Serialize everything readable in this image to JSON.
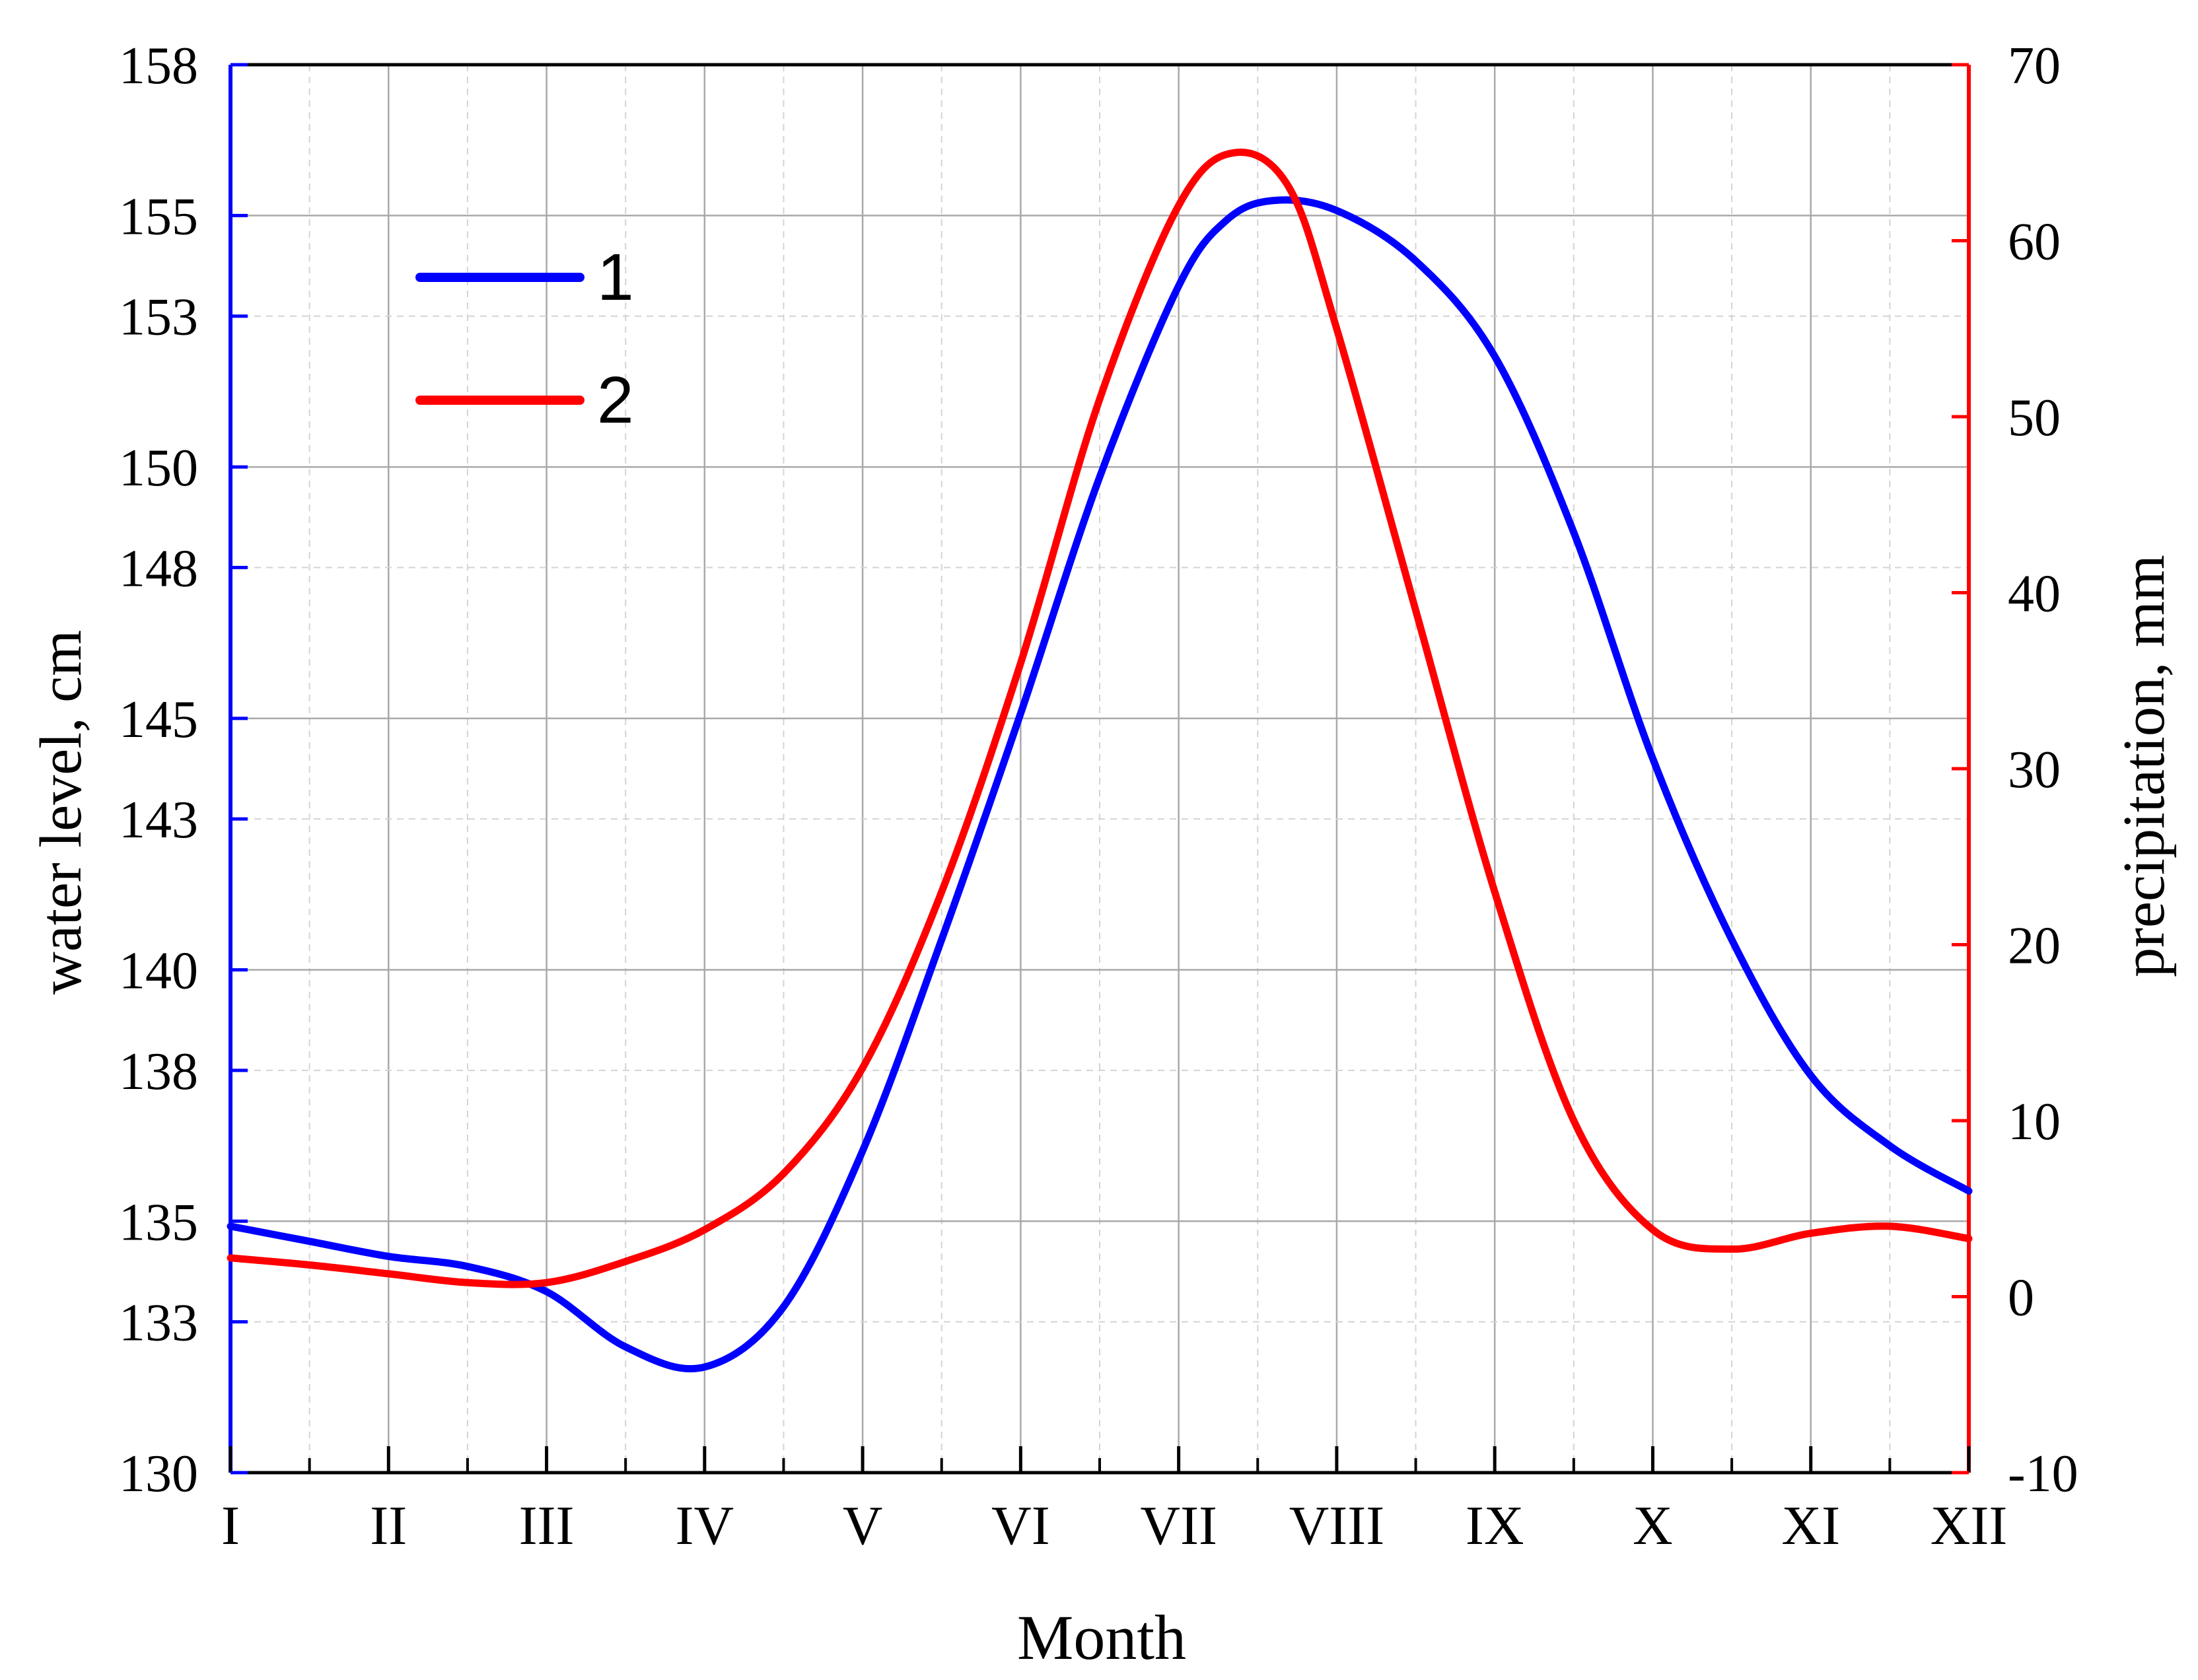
{
  "chart_data": {
    "type": "line",
    "x_categories": [
      "I",
      "II",
      "III",
      "IV",
      "V",
      "VI",
      "VII",
      "VIII",
      "IX",
      "X",
      "XI",
      "XII"
    ],
    "xlabel": "Month",
    "ylabel_left": "water level, cm",
    "ylabel_right": "precipitation, mm",
    "y_left": {
      "range": [
        130,
        158
      ],
      "ticks": [
        130,
        133,
        135,
        138,
        140,
        143,
        145,
        148,
        150,
        153,
        155,
        158
      ],
      "color": "#0000ff"
    },
    "y_right": {
      "range": [
        -10,
        70
      ],
      "ticks": [
        -10,
        0,
        10,
        20,
        30,
        40,
        50,
        60,
        70
      ],
      "color": "#ff0000"
    },
    "grid": true,
    "legend_position": "top-left",
    "series": [
      {
        "name": "1",
        "axis": "left",
        "color": "#0000ff",
        "points": [
          [
            1,
            134.9
          ],
          [
            1.5,
            134.6
          ],
          [
            2,
            134.3
          ],
          [
            2.5,
            134.1
          ],
          [
            3,
            133.6
          ],
          [
            3.5,
            132.5
          ],
          [
            4,
            132.1
          ],
          [
            4.5,
            133.3
          ],
          [
            5,
            136.4
          ],
          [
            5.5,
            140.6
          ],
          [
            6,
            145.1
          ],
          [
            6.5,
            149.8
          ],
          [
            7,
            153.6
          ],
          [
            7.3,
            154.9
          ],
          [
            7.6,
            155.3
          ],
          [
            8,
            155.1
          ],
          [
            8.5,
            154.1
          ],
          [
            9,
            152.2
          ],
          [
            9.5,
            148.7
          ],
          [
            10,
            144.2
          ],
          [
            10.5,
            140.6
          ],
          [
            11,
            137.9
          ],
          [
            11.5,
            136.5
          ],
          [
            12,
            135.6
          ]
        ]
      },
      {
        "name": "2",
        "axis": "right",
        "color": "#ff0000",
        "points": [
          [
            1,
            2.2
          ],
          [
            1.5,
            1.8
          ],
          [
            2,
            1.3
          ],
          [
            2.5,
            0.8
          ],
          [
            3,
            0.8
          ],
          [
            3.5,
            2.0
          ],
          [
            4,
            3.8
          ],
          [
            4.5,
            7.0
          ],
          [
            5,
            13.0
          ],
          [
            5.5,
            23.0
          ],
          [
            6,
            36.0
          ],
          [
            6.5,
            51.0
          ],
          [
            7,
            62.0
          ],
          [
            7.35,
            65.0
          ],
          [
            7.7,
            63.0
          ],
          [
            8,
            55.0
          ],
          [
            8.5,
            39.0
          ],
          [
            9,
            23.0
          ],
          [
            9.5,
            10.0
          ],
          [
            10,
            3.8
          ],
          [
            10.5,
            2.7
          ],
          [
            11,
            3.6
          ],
          [
            11.5,
            4.0
          ],
          [
            12,
            3.3
          ]
        ]
      }
    ]
  }
}
